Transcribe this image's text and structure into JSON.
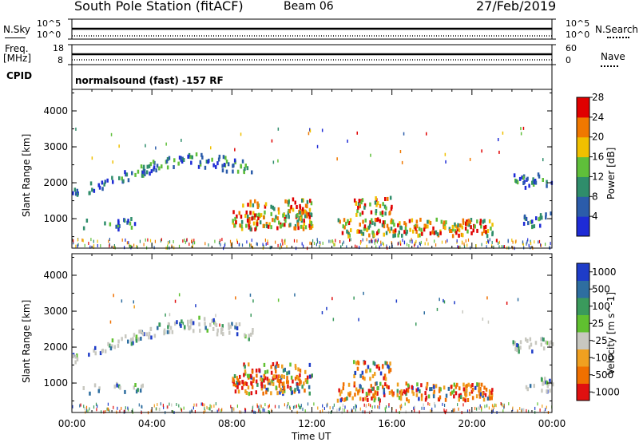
{
  "header": {
    "station": "South Pole Station (fitACF)",
    "beam": "Beam 06",
    "date": "27/Feb/2019"
  },
  "top_panels": {
    "nsky_label": "N.Sky",
    "nsearch_label": "N.Search",
    "sky_ticks": [
      "10^5",
      "10^0"
    ],
    "search_ticks": [
      "10^5",
      "10^0"
    ],
    "freq_label_1": "Freq.",
    "freq_label_2": "[MHz]",
    "freq_ticks": [
      "18",
      "8"
    ],
    "nave_label": "Nave",
    "nave_ticks": [
      "60",
      "0"
    ],
    "cpid_label": "CPID",
    "cpid_text": "normalsound (fast) -157 RF"
  },
  "chart_data": [
    {
      "type": "heatmap",
      "name": "power",
      "xlabel": "Time UT",
      "ylabel": "Slant Range [km]",
      "x_ticks": [
        "00:00",
        "04:00",
        "08:00",
        "12:00",
        "16:00",
        "20:00",
        "00:00"
      ],
      "y_ticks": [
        "1000",
        "2000",
        "3000",
        "4000"
      ],
      "xlim": [
        0,
        24
      ],
      "ylim": [
        180,
        4600
      ],
      "colorbar": {
        "label": "Power [dB]",
        "ticks": [
          "4",
          "8",
          "12",
          "16",
          "20",
          "24",
          "28"
        ],
        "colors": [
          "#1e2bd6",
          "#2b5caa",
          "#2f8d6b",
          "#5fbf3a",
          "#f0c000",
          "#f07800",
          "#e00000"
        ]
      }
    },
    {
      "type": "heatmap",
      "name": "velocity",
      "xlabel": "Time UT",
      "ylabel": "Slant Range [km]",
      "x_ticks": [
        "00:00",
        "04:00",
        "08:00",
        "12:00",
        "16:00",
        "20:00",
        "00:00"
      ],
      "y_ticks": [
        "1000",
        "2000",
        "3000",
        "4000"
      ],
      "xlim": [
        0,
        24
      ],
      "ylim": [
        180,
        4600
      ],
      "colorbar": {
        "label": "Velocity [m s^-1]",
        "ticks": [
          "1000",
          "500",
          "100",
          "25",
          "-25",
          "-100",
          "-500",
          "-1000"
        ],
        "colors": [
          "#1e3cc8",
          "#2e6ea0",
          "#3a9a5c",
          "#60c030",
          "#c8c8c0",
          "#f0a020",
          "#f07000",
          "#e01010"
        ]
      }
    }
  ],
  "x_axis_title": "Time UT"
}
